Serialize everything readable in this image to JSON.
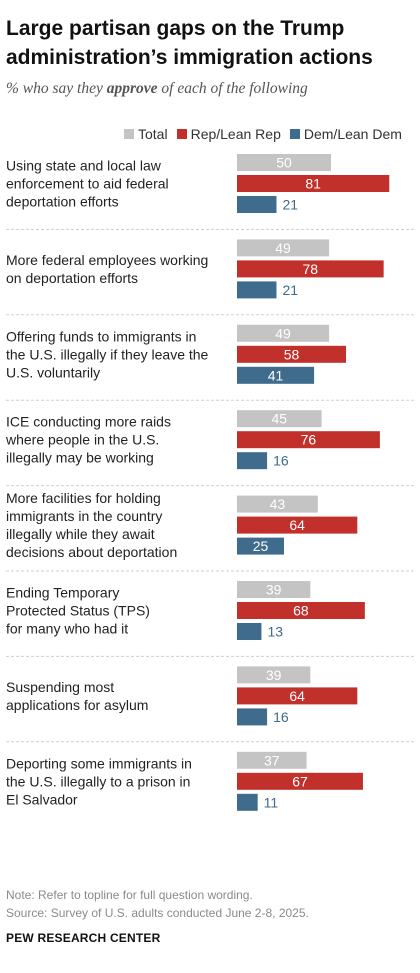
{
  "title": "Large partisan gaps on the Trump administration’s immigration actions",
  "subtitle_pre": "% who say they ",
  "subtitle_em": "approve",
  "subtitle_post": " of each of the following",
  "note": "Note: Refer to topline for full question wording.",
  "source": "Source: Survey of U.S. adults conducted June 2-8, 2025.",
  "brand": "PEW RESEARCH CENTER",
  "colors": {
    "total": "#c4c4c4",
    "rep": "#c1302b",
    "dem": "#3f6b8c",
    "divider": "#cfcfcf"
  },
  "chart_data": {
    "type": "bar",
    "orientation": "horizontal",
    "xlim": [
      0,
      100
    ],
    "categories": [
      [
        "Using state and local law",
        "enforcement to aid federal",
        "deportation efforts"
      ],
      [
        "More federal employees working",
        "on deportation efforts"
      ],
      [
        "Offering funds to immigrants in",
        "the U.S. illegally if they leave the",
        "U.S. voluntarily"
      ],
      [
        "ICE conducting more raids",
        "where people in the U.S.",
        "illegally may be working"
      ],
      [
        "More facilities for holding",
        "immigrants in the country",
        "illegally while they await",
        "decisions about deportation"
      ],
      [
        "Ending Temporary",
        "Protected Status (TPS)",
        "for many who had it"
      ],
      [
        "Suspending most",
        "applications for asylum"
      ],
      [
        "Deporting some immigrants in",
        "the U.S. illegally to a prison in",
        "El Salvador"
      ]
    ],
    "series": [
      {
        "name": "Total",
        "values": [
          50,
          49,
          49,
          45,
          43,
          39,
          39,
          37
        ]
      },
      {
        "name": "Rep/Lean Rep",
        "values": [
          81,
          78,
          58,
          76,
          64,
          68,
          64,
          67
        ]
      },
      {
        "name": "Dem/Lean Dem",
        "values": [
          21,
          21,
          41,
          16,
          25,
          13,
          16,
          11
        ]
      }
    ]
  }
}
